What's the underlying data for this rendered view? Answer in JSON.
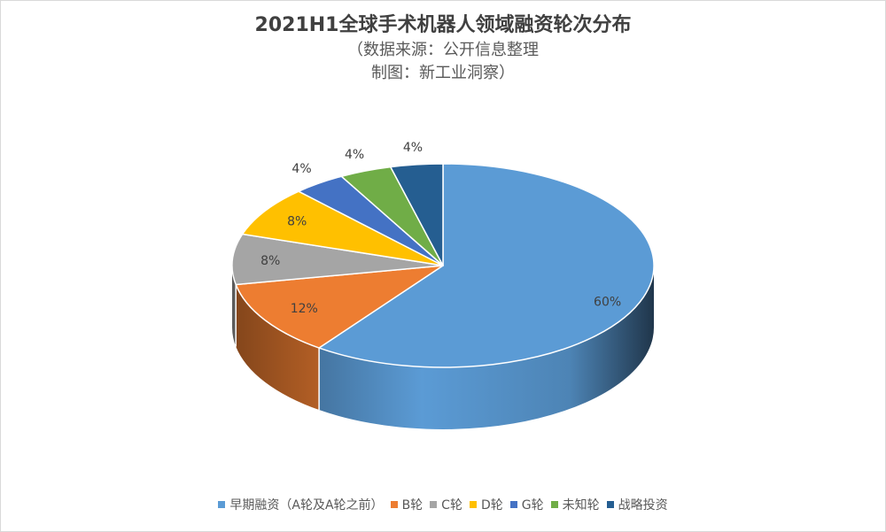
{
  "chart_data": {
    "type": "pie",
    "title": "2021H1全球手术机器人领域融资轮次分布",
    "subtitle_lines": [
      "（数据来源：公开信息整理",
      "制图：新工业洞察）"
    ],
    "slices": [
      {
        "name": "早期融资（A轮及A轮之前）",
        "value": 60,
        "label": "60%",
        "color": "#5B9BD5"
      },
      {
        "name": "B轮",
        "value": 12,
        "label": "12%",
        "color": "#ED7D31"
      },
      {
        "name": "C轮",
        "value": 8,
        "label": "8%",
        "color": "#A5A5A5"
      },
      {
        "name": "D轮",
        "value": 8,
        "label": "8%",
        "color": "#FFC000"
      },
      {
        "name": "G轮",
        "value": 4,
        "label": "4%",
        "color": "#4472C4"
      },
      {
        "name": "未知轮",
        "value": 4,
        "label": "4%",
        "color": "#70AD47"
      },
      {
        "name": "战略投资",
        "value": 4,
        "label": "4%",
        "color": "#255E91"
      }
    ],
    "legend_position": "bottom",
    "style": "3d-pie"
  }
}
